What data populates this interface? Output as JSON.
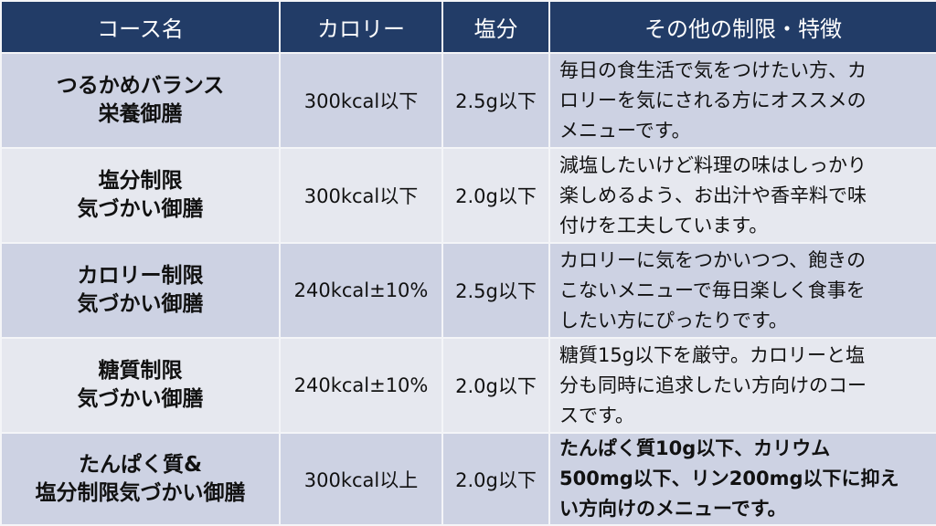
{
  "colors": {
    "header": "#223c67",
    "row_dark": "#cdd2e3",
    "row_light": "#e6e8ef"
  },
  "headers": [
    "コース名",
    "カロリー",
    "塩分",
    "その他の制限・特徴"
  ],
  "rows": [
    {
      "name": [
        "つるかめバランス",
        "栄養御膳"
      ],
      "calorie": "300kcal以下",
      "salt": "2.5g以下",
      "desc": [
        "毎日の食生活で気をつけたい方、カ",
        "ロリーを気にされる方にオススメの",
        "メニューです。"
      ]
    },
    {
      "name": [
        "塩分制限",
        "気づかい御膳"
      ],
      "calorie": "300kcal以下",
      "salt": "2.0g以下",
      "desc": [
        "減塩したいけど料理の味はしっかり",
        "楽しめるよう、お出汁や香辛料で味",
        "付けを工夫しています。"
      ]
    },
    {
      "name": [
        "カロリー制限",
        "気づかい御膳"
      ],
      "calorie": "240kcal±10%",
      "salt": "2.5g以下",
      "desc": [
        "カロリーに気をつかいつつ、飽きの",
        "こないメニューで毎日楽しく食事を",
        "したい方にぴったりです。"
      ]
    },
    {
      "name": [
        "糖質制限",
        "気づかい御膳"
      ],
      "calorie": "240kcal±10%",
      "salt": "2.0g以下",
      "desc": [
        "糖質15g以下を厳守。カロリーと塩",
        "分も同時に追求したい方向けのコー",
        "スです。"
      ]
    },
    {
      "name": [
        "たんぱく質&",
        "塩分制限気づかい御膳"
      ],
      "calorie": "300kcal以上",
      "salt": "2.0g以下",
      "desc": [
        "たんぱく質10g以下、カリウム",
        "500mg以下、リン200mg以下に抑え",
        "い方向けのメニューです。"
      ]
    }
  ]
}
